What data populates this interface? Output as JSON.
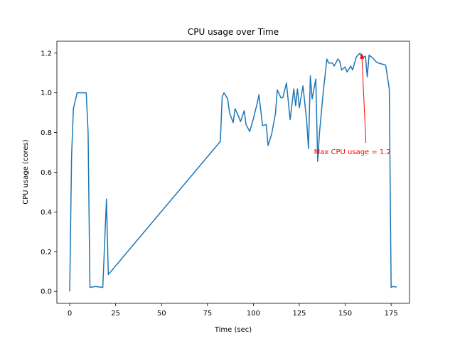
{
  "chart_data": {
    "type": "line",
    "title": "CPU usage over Time",
    "xlabel": "Time (sec)",
    "ylabel": "CPU usage (cores)",
    "xlim": [
      -7,
      185
    ],
    "ylim": [
      -0.06,
      1.26
    ],
    "xticks": [
      0,
      25,
      50,
      75,
      100,
      125,
      150,
      175
    ],
    "yticks": [
      0.0,
      0.2,
      0.4,
      0.6,
      0.8,
      1.0,
      1.2
    ],
    "xtick_labels": [
      "0",
      "25",
      "50",
      "75",
      "100",
      "125",
      "150",
      "175"
    ],
    "ytick_labels": [
      "0.0",
      "0.2",
      "0.4",
      "0.6",
      "0.8",
      "1.0",
      "1.2"
    ],
    "series": [
      {
        "name": "CPU usage",
        "color": "#1f77b4",
        "points": [
          [
            0,
            0.0
          ],
          [
            1,
            0.68
          ],
          [
            2,
            0.92
          ],
          [
            4,
            1.0
          ],
          [
            6,
            1.0
          ],
          [
            8,
            1.0
          ],
          [
            9,
            1.0
          ],
          [
            10,
            0.8
          ],
          [
            11,
            0.02
          ],
          [
            14,
            0.025
          ],
          [
            18,
            0.02
          ],
          [
            20,
            0.465
          ],
          [
            21,
            0.085
          ],
          [
            82,
            0.755
          ],
          [
            83,
            0.98
          ],
          [
            84,
            1.0
          ],
          [
            86,
            0.97
          ],
          [
            87,
            0.9
          ],
          [
            89,
            0.85
          ],
          [
            90,
            0.92
          ],
          [
            92,
            0.88
          ],
          [
            93,
            0.855
          ],
          [
            95,
            0.91
          ],
          [
            96,
            0.84
          ],
          [
            98,
            0.805
          ],
          [
            100,
            0.87
          ],
          [
            102,
            0.945
          ],
          [
            103,
            0.99
          ],
          [
            105,
            0.835
          ],
          [
            107,
            0.84
          ],
          [
            108,
            0.735
          ],
          [
            110,
            0.795
          ],
          [
            112,
            0.895
          ],
          [
            113,
            1.015
          ],
          [
            115,
            0.975
          ],
          [
            116,
            0.975
          ],
          [
            118,
            1.05
          ],
          [
            120,
            0.865
          ],
          [
            122,
            1.02
          ],
          [
            123,
            0.935
          ],
          [
            124,
            1.02
          ],
          [
            125,
            0.925
          ],
          [
            127,
            1.035
          ],
          [
            129,
            0.86
          ],
          [
            130,
            0.72
          ],
          [
            131,
            1.085
          ],
          [
            132,
            0.97
          ],
          [
            134,
            1.07
          ],
          [
            135,
            0.655
          ],
          [
            136,
            0.8
          ],
          [
            138,
            1.0
          ],
          [
            140,
            1.17
          ],
          [
            141,
            1.15
          ],
          [
            143,
            1.15
          ],
          [
            144,
            1.135
          ],
          [
            146,
            1.17
          ],
          [
            147,
            1.16
          ],
          [
            148,
            1.115
          ],
          [
            150,
            1.13
          ],
          [
            151,
            1.105
          ],
          [
            153,
            1.135
          ],
          [
            154,
            1.115
          ],
          [
            156,
            1.18
          ],
          [
            158,
            1.2
          ],
          [
            159,
            1.175
          ],
          [
            161,
            1.185
          ],
          [
            162,
            1.08
          ],
          [
            163,
            1.19
          ],
          [
            165,
            1.175
          ],
          [
            167,
            1.155
          ],
          [
            168,
            1.15
          ],
          [
            170,
            1.145
          ],
          [
            172,
            1.14
          ],
          [
            174,
            1.02
          ],
          [
            175,
            0.02
          ],
          [
            176,
            0.025
          ],
          [
            178,
            0.022
          ]
        ]
      }
    ],
    "annotation": {
      "text": "Max CPU usage = 1.2",
      "color": "#ff0000",
      "xy": [
        159,
        1.2
      ],
      "xytext": [
        133,
        0.705
      ]
    }
  }
}
